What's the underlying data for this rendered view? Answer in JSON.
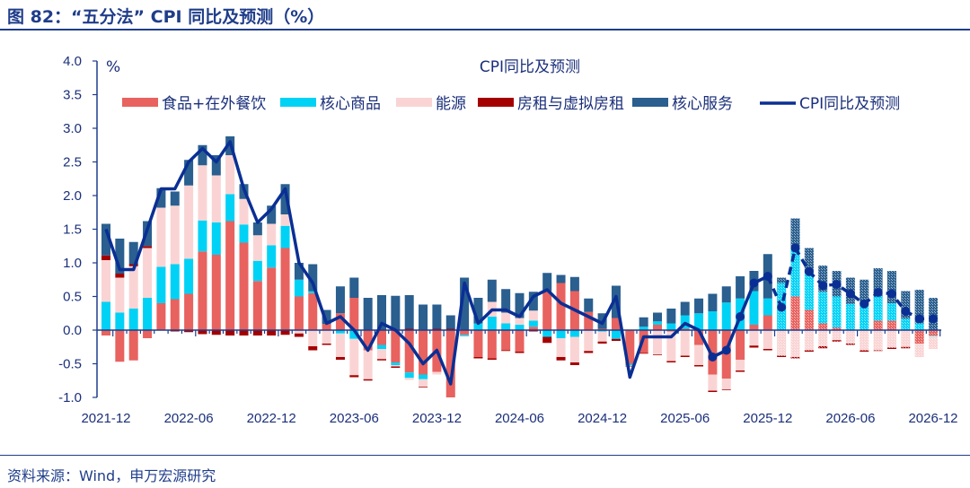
{
  "figure_title": "图 82：“五分法” CPI 同比及预测（%）",
  "source": "资料来源：Wind，申万宏源研究",
  "colors": {
    "food": "#E8625F",
    "core_goods": "#00D2F5",
    "energy": "#FAD4D4",
    "rent": "#A50000",
    "core_services": "#2A5F8F",
    "cpi": "#0A2F94",
    "title": "#1F3D8A"
  },
  "chart_data": {
    "type": "bar",
    "title": "CPI同比及预测",
    "ylabel": "%",
    "ylim": [
      -1.0,
      4.0
    ],
    "yticks": [
      "4.0",
      "3.5",
      "3.0",
      "2.5",
      "2.0",
      "1.5",
      "1.0",
      "0.5",
      "0.0",
      "-0.5",
      "-1.0"
    ],
    "xtick_labels": [
      "2021-12",
      "2022-06",
      "2022-12",
      "2023-06",
      "2023-12",
      "2024-06",
      "2024-12",
      "2025-06",
      "2025-12",
      "2026-06",
      "2026-12"
    ],
    "forecast_start": "2026-01",
    "markers_from": "2025-08",
    "legend_placement": "top",
    "categories": [
      "2021-12",
      "2022-01",
      "2022-02",
      "2022-03",
      "2022-04",
      "2022-05",
      "2022-06",
      "2022-07",
      "2022-08",
      "2022-09",
      "2022-10",
      "2022-11",
      "2022-12",
      "2023-01",
      "2023-02",
      "2023-03",
      "2023-04",
      "2023-05",
      "2023-06",
      "2023-07",
      "2023-08",
      "2023-09",
      "2023-10",
      "2023-11",
      "2023-12",
      "2024-01",
      "2024-02",
      "2024-03",
      "2024-04",
      "2024-05",
      "2024-06",
      "2024-07",
      "2024-08",
      "2024-09",
      "2024-10",
      "2024-11",
      "2024-12",
      "2025-01",
      "2025-02",
      "2025-03",
      "2025-04",
      "2025-05",
      "2025-06",
      "2025-07",
      "2025-08",
      "2025-09",
      "2025-10",
      "2025-11",
      "2025-12",
      "2026-01",
      "2026-02",
      "2026-03",
      "2026-04",
      "2026-05",
      "2026-06",
      "2026-07",
      "2026-08",
      "2026-09",
      "2026-10",
      "2026-11",
      "2026-12"
    ],
    "series": [
      {
        "name": "食品+在外餐饮",
        "key": "food",
        "type": "bar",
        "values": [
          -0.08,
          -0.47,
          -0.45,
          -0.12,
          0.4,
          0.46,
          0.54,
          1.17,
          1.12,
          1.62,
          1.3,
          0.73,
          0.93,
          1.22,
          0.5,
          0.55,
          0.09,
          0.25,
          0.48,
          -0.3,
          -0.22,
          -0.48,
          -0.63,
          -0.66,
          -0.62,
          -1.0,
          -0.07,
          -0.4,
          -0.42,
          -0.3,
          -0.32,
          0.05,
          0.58,
          0.7,
          0.58,
          0.27,
          0.02,
          0.18,
          -0.5,
          -0.34,
          0.08,
          -0.02,
          0.02,
          -0.22,
          -0.66,
          -0.72,
          -0.44,
          0.08,
          0.22,
          0,
          0.5,
          0.3,
          0.1,
          0.04,
          0,
          0,
          0.14,
          0.14,
          0,
          -0.2,
          -0.08
        ]
      },
      {
        "name": "核心商品",
        "key": "core_goods",
        "type": "bar",
        "values": [
          0.42,
          0.26,
          0.32,
          0.48,
          0.54,
          0.52,
          0.52,
          0.46,
          0.48,
          0.4,
          0.27,
          0.3,
          0.33,
          0.33,
          0.25,
          0.03,
          0,
          -0.05,
          -0.13,
          0,
          -0.06,
          -0.04,
          -0.08,
          -0.07,
          0,
          0,
          -0.02,
          0.1,
          0.2,
          0.1,
          0.08,
          0.09,
          -0.1,
          -0.12,
          -0.1,
          0,
          -0.02,
          -0.13,
          -0.02,
          0.05,
          0.05,
          0.1,
          0.2,
          0.25,
          0.28,
          0.41,
          0.47,
          0.5,
          0.25,
          0.7,
          0.7,
          0.55,
          0.47,
          0.46,
          0.39,
          0.37,
          0.36,
          0.26,
          0.17,
          0.1,
          -0.01
        ]
      },
      {
        "name": "能源",
        "key": "energy",
        "type": "bar",
        "values": [
          0.62,
          0.52,
          0.63,
          0.74,
          0.88,
          0.87,
          1.09,
          0.82,
          0.7,
          0.58,
          0.38,
          0.38,
          0.32,
          0.17,
          -0.05,
          -0.24,
          -0.2,
          -0.35,
          -0.54,
          -0.43,
          -0.15,
          -0.02,
          -0.03,
          -0.11,
          -0.04,
          0,
          0,
          0,
          0.22,
          0.16,
          0.1,
          0.15,
          0,
          -0.28,
          -0.38,
          -0.31,
          -0.15,
          0,
          -0.01,
          0,
          -0.36,
          -0.44,
          -0.38,
          -0.3,
          -0.24,
          -0.16,
          -0.16,
          -0.23,
          -0.28,
          -0.38,
          -0.4,
          -0.3,
          -0.24,
          -0.15,
          -0.2,
          -0.3,
          -0.3,
          -0.26,
          -0.25,
          -0.2,
          -0.19
        ]
      },
      {
        "name": "房租与虚拟房租",
        "key": "rent",
        "type": "bar",
        "values": [
          0.07,
          0.06,
          0.03,
          0.03,
          0,
          -0.02,
          -0.03,
          -0.06,
          -0.07,
          -0.08,
          -0.08,
          -0.08,
          -0.08,
          -0.07,
          -0.05,
          -0.06,
          -0.02,
          -0.04,
          -0.03,
          -0.02,
          -0.02,
          -0.02,
          0.02,
          -0.01,
          0.02,
          0.02,
          0,
          -0.02,
          -0.02,
          -0.01,
          -0.02,
          -0.02,
          -0.09,
          -0.05,
          -0.04,
          -0.03,
          -0.03,
          -0.03,
          -0.01,
          -0.01,
          -0.01,
          -0.02,
          -0.02,
          -0.02,
          -0.02,
          -0.01,
          -0.02,
          -0.03,
          -0.02,
          -0.02,
          -0.02,
          -0.02,
          -0.03,
          -0.02,
          -0.02,
          -0.02,
          -0.01,
          -0.02,
          -0.02,
          0,
          0
        ]
      },
      {
        "name": "核心服务",
        "key": "core_services",
        "type": "bar",
        "values": [
          0.47,
          0.52,
          0.33,
          0.37,
          0.29,
          0.21,
          0.38,
          0.3,
          0.3,
          0.28,
          0.22,
          0.19,
          0.27,
          0.45,
          0.25,
          0.4,
          0.21,
          0.4,
          0.3,
          0.48,
          0.52,
          0.51,
          0.5,
          0.38,
          0.36,
          0.2,
          0.78,
          0.38,
          0.33,
          0.35,
          0.37,
          0.28,
          0.27,
          0.12,
          0.21,
          0.2,
          0.23,
          0.48,
          0,
          0.14,
          0.13,
          0.22,
          0.2,
          0.22,
          0.26,
          0.24,
          0.33,
          0.3,
          0.66,
          0.08,
          0.46,
          0.37,
          0.39,
          0.38,
          0.39,
          0.38,
          0.42,
          0.48,
          0.41,
          0.5,
          0.48
        ]
      },
      {
        "name": "CPI同比及预测",
        "key": "cpi",
        "type": "line",
        "values": [
          1.5,
          0.9,
          0.9,
          1.5,
          2.1,
          2.1,
          2.5,
          2.7,
          2.5,
          2.8,
          2.1,
          1.6,
          1.8,
          2.1,
          1.0,
          0.7,
          0.1,
          0.2,
          0.0,
          -0.3,
          0.1,
          0.0,
          -0.2,
          -0.5,
          -0.3,
          -0.8,
          0.7,
          0.1,
          0.3,
          0.3,
          0.2,
          0.5,
          0.6,
          0.4,
          0.3,
          0.2,
          0.1,
          0.5,
          -0.7,
          -0.1,
          -0.1,
          -0.1,
          0.1,
          0.0,
          -0.4,
          -0.3,
          0.2,
          0.7,
          0.8,
          0.34,
          1.22,
          0.87,
          0.66,
          0.68,
          0.54,
          0.39,
          0.56,
          0.54,
          0.28,
          0.17,
          0.17
        ]
      }
    ]
  }
}
